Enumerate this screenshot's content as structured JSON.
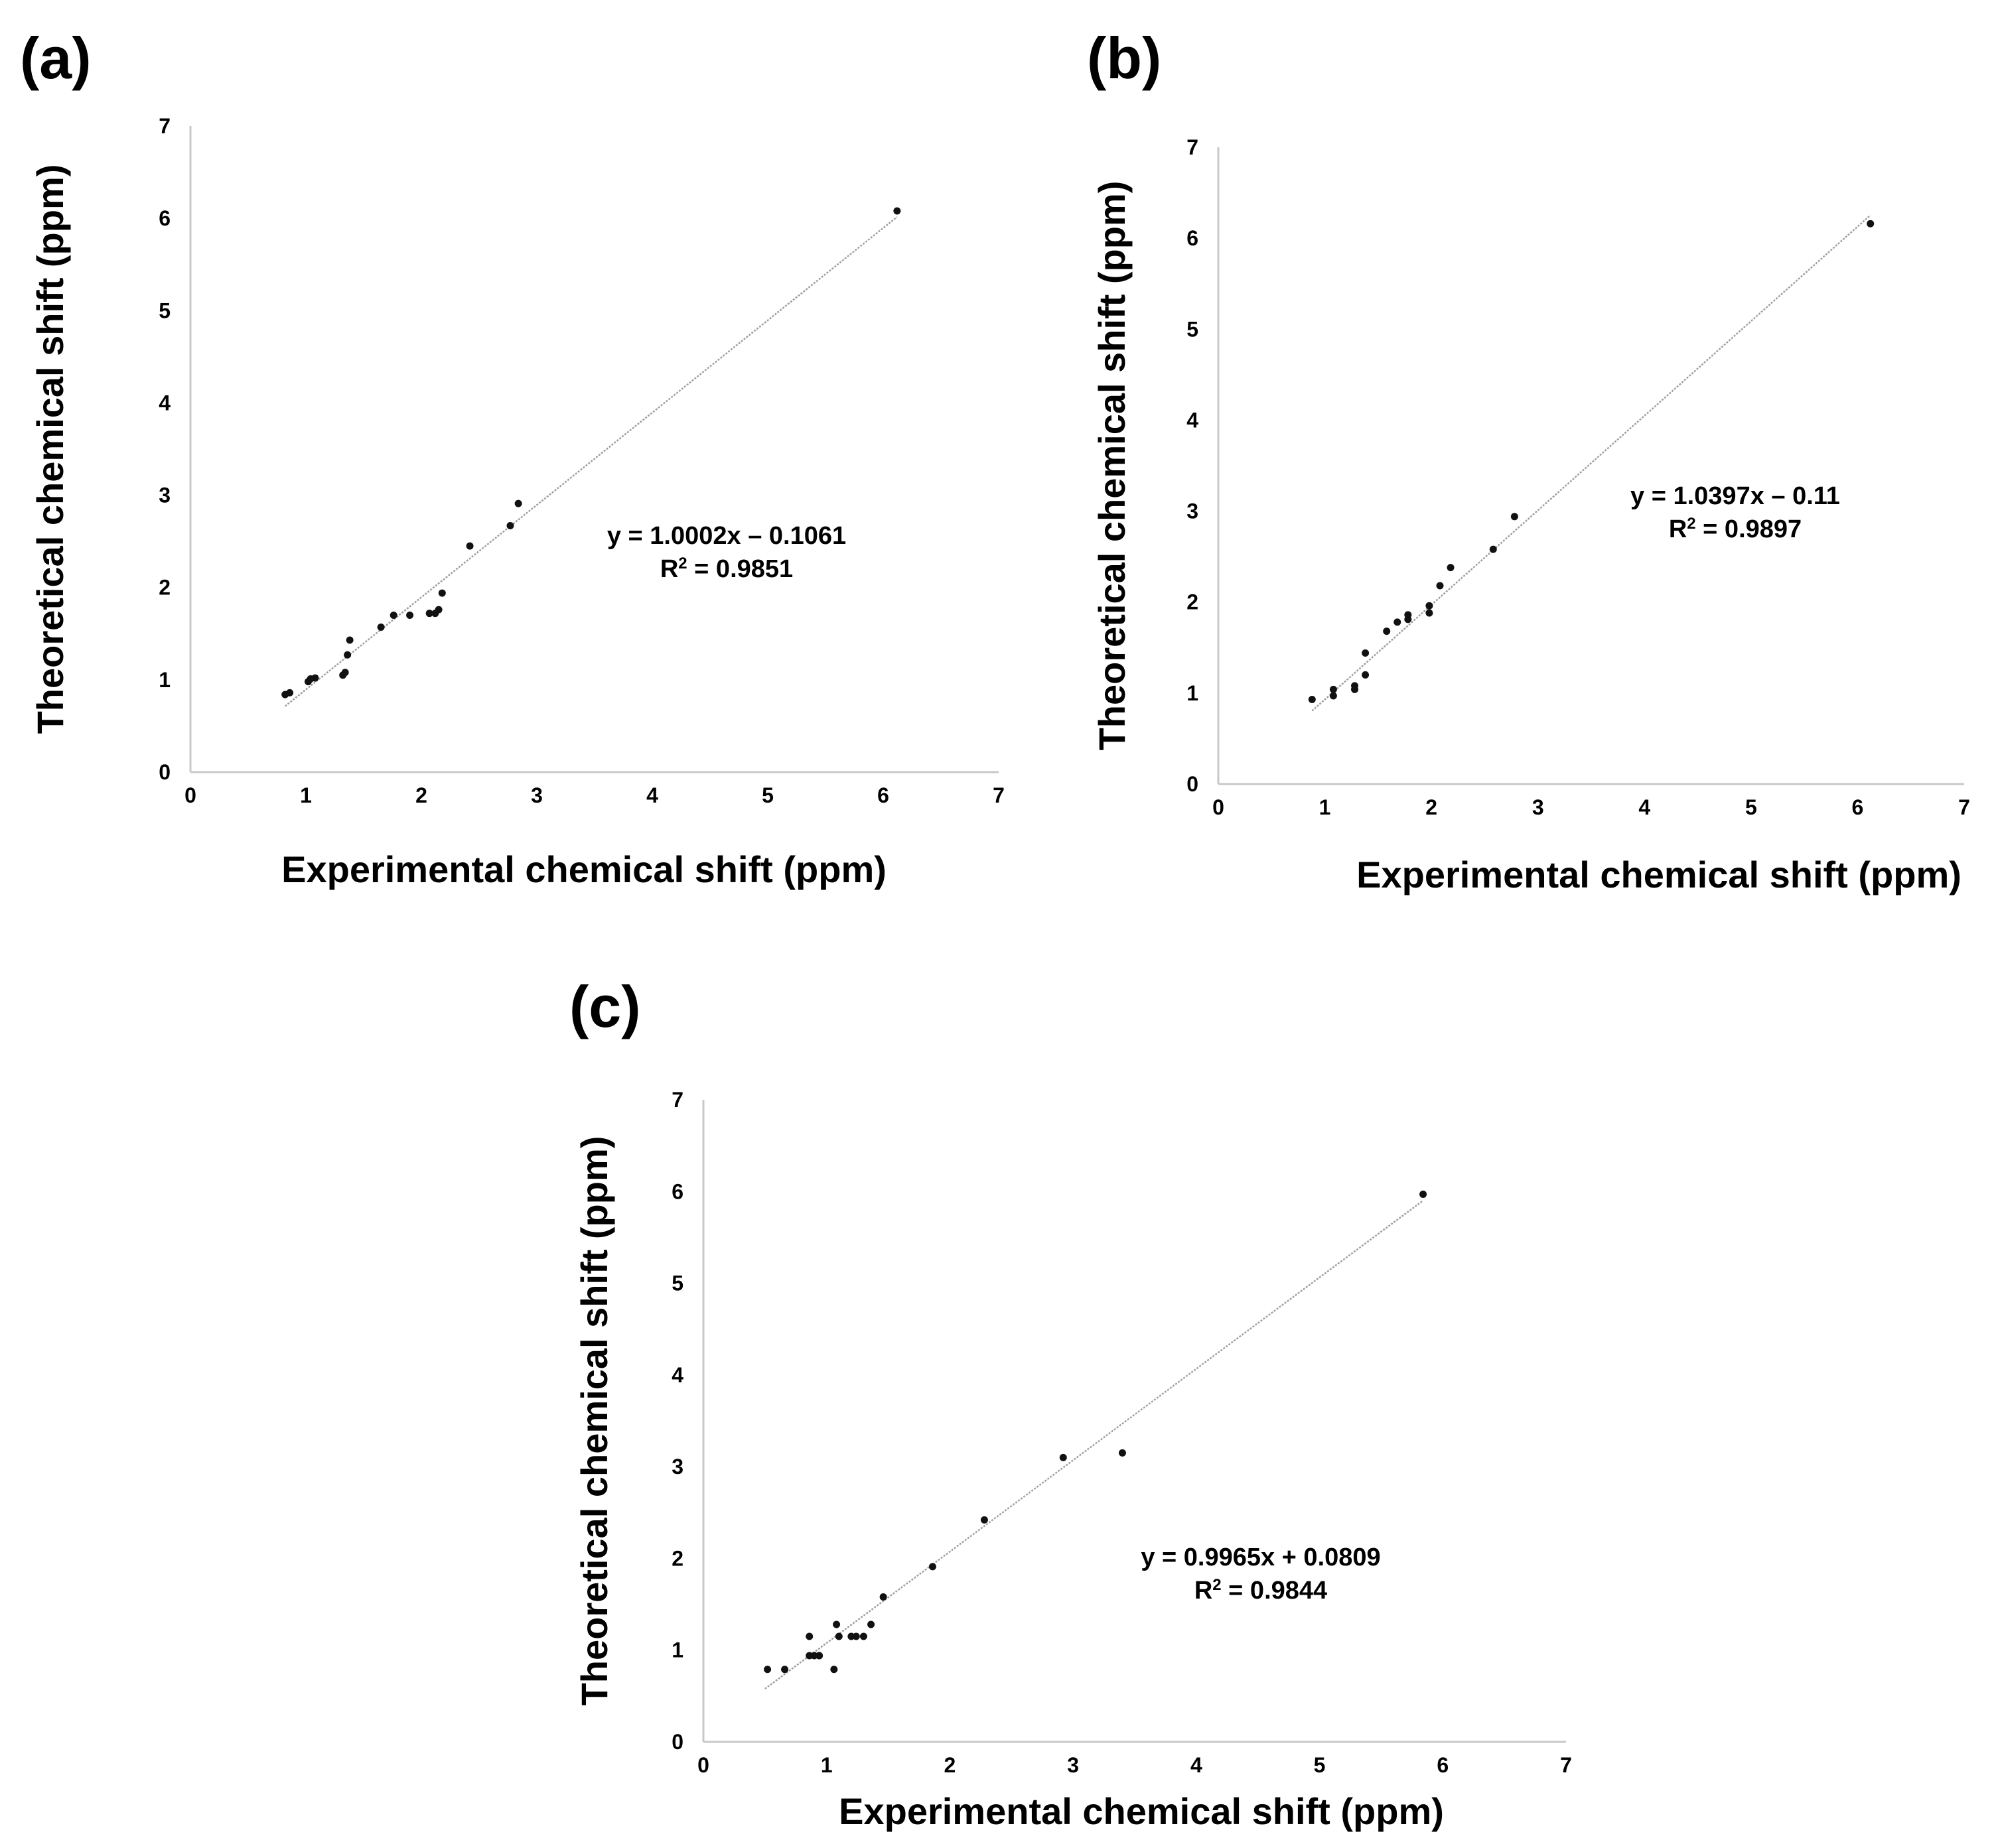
{
  "chart_data": [
    {
      "panel_label": "(a)",
      "type": "scatter",
      "xlabel": "Experimental chemical shift (ppm)",
      "ylabel": "Theoretical chemical shift (ppm)",
      "xlim": [
        0,
        7
      ],
      "ylim": [
        0,
        7
      ],
      "xticks": [
        "0",
        "1",
        "2",
        "3",
        "4",
        "5",
        "6",
        "7"
      ],
      "yticks": [
        "0",
        "1",
        "2",
        "3",
        "4",
        "5",
        "6",
        "7"
      ],
      "equation": "y = 1.0002x – 0.1061",
      "r2_prefix": "R",
      "r2_sup": "2",
      "r2_value": " = 0.9851",
      "trendline": {
        "slope": 1.0002,
        "intercept": -0.1061,
        "x_range": [
          0.82,
          6.12
        ]
      },
      "x": [
        0.82,
        0.86,
        1.02,
        1.04,
        1.08,
        1.32,
        1.34,
        1.36,
        1.38,
        1.65,
        1.76,
        1.9,
        2.07,
        2.12,
        2.15,
        2.18,
        2.42,
        2.77,
        2.84,
        6.12
      ],
      "y": [
        0.84,
        0.86,
        0.98,
        1.01,
        1.02,
        1.05,
        1.08,
        1.27,
        1.43,
        1.57,
        1.7,
        1.7,
        1.72,
        1.72,
        1.76,
        1.94,
        2.45,
        2.67,
        2.91,
        6.08
      ]
    },
    {
      "panel_label": "(b)",
      "type": "scatter",
      "xlabel": "Experimental chemical shift (ppm)",
      "ylabel": "Theoretical chemical shift (ppm)",
      "xlim": [
        0,
        7
      ],
      "ylim": [
        0,
        7
      ],
      "xticks": [
        "0",
        "1",
        "2",
        "3",
        "4",
        "5",
        "6",
        "7"
      ],
      "yticks": [
        "0",
        "1",
        "2",
        "3",
        "4",
        "5",
        "6",
        "7"
      ],
      "equation": "y = 1.0397x  – 0.11",
      "r2_prefix": "R",
      "r2_sup": "2",
      "r2_value": " = 0.9897",
      "trendline": {
        "slope": 1.0397,
        "intercept": -0.11,
        "x_range": [
          0.88,
          6.12
        ]
      },
      "x": [
        0.88,
        1.08,
        1.08,
        1.28,
        1.28,
        1.38,
        1.38,
        1.58,
        1.68,
        1.78,
        1.78,
        1.98,
        1.98,
        2.08,
        2.18,
        2.58,
        2.78,
        6.12
      ],
      "y": [
        0.93,
        0.97,
        1.04,
        1.04,
        1.08,
        1.2,
        1.44,
        1.68,
        1.78,
        1.81,
        1.86,
        1.88,
        1.96,
        2.18,
        2.38,
        2.58,
        2.94,
        6.16
      ]
    },
    {
      "panel_label": "(c)",
      "type": "scatter",
      "xlabel": "Experimental chemical shift (ppm)",
      "ylabel": "Theoretical chemical shift (ppm)",
      "xlim": [
        0,
        7
      ],
      "ylim": [
        0,
        7
      ],
      "xticks": [
        "0",
        "1",
        "2",
        "3",
        "4",
        "5",
        "6",
        "7"
      ],
      "yticks": [
        "0",
        "1",
        "2",
        "3",
        "4",
        "5",
        "6",
        "7"
      ],
      "equation": "y = 0.9965x + 0.0809",
      "r2_prefix": "R",
      "r2_sup": "2",
      "r2_value": " = 0.9844",
      "trendline": {
        "slope": 0.9965,
        "intercept": 0.0809,
        "x_range": [
          0.5,
          5.84
        ]
      },
      "x": [
        0.52,
        0.66,
        0.86,
        0.86,
        0.9,
        0.94,
        0.94,
        1.06,
        1.08,
        1.1,
        1.2,
        1.24,
        1.3,
        1.36,
        1.46,
        1.86,
        2.28,
        2.92,
        3.4,
        5.84
      ],
      "y": [
        0.79,
        0.79,
        1.15,
        0.94,
        0.94,
        0.94,
        0.94,
        0.79,
        1.28,
        1.15,
        1.15,
        1.15,
        1.15,
        1.28,
        1.58,
        1.91,
        2.42,
        3.1,
        3.15,
        5.97
      ]
    }
  ]
}
